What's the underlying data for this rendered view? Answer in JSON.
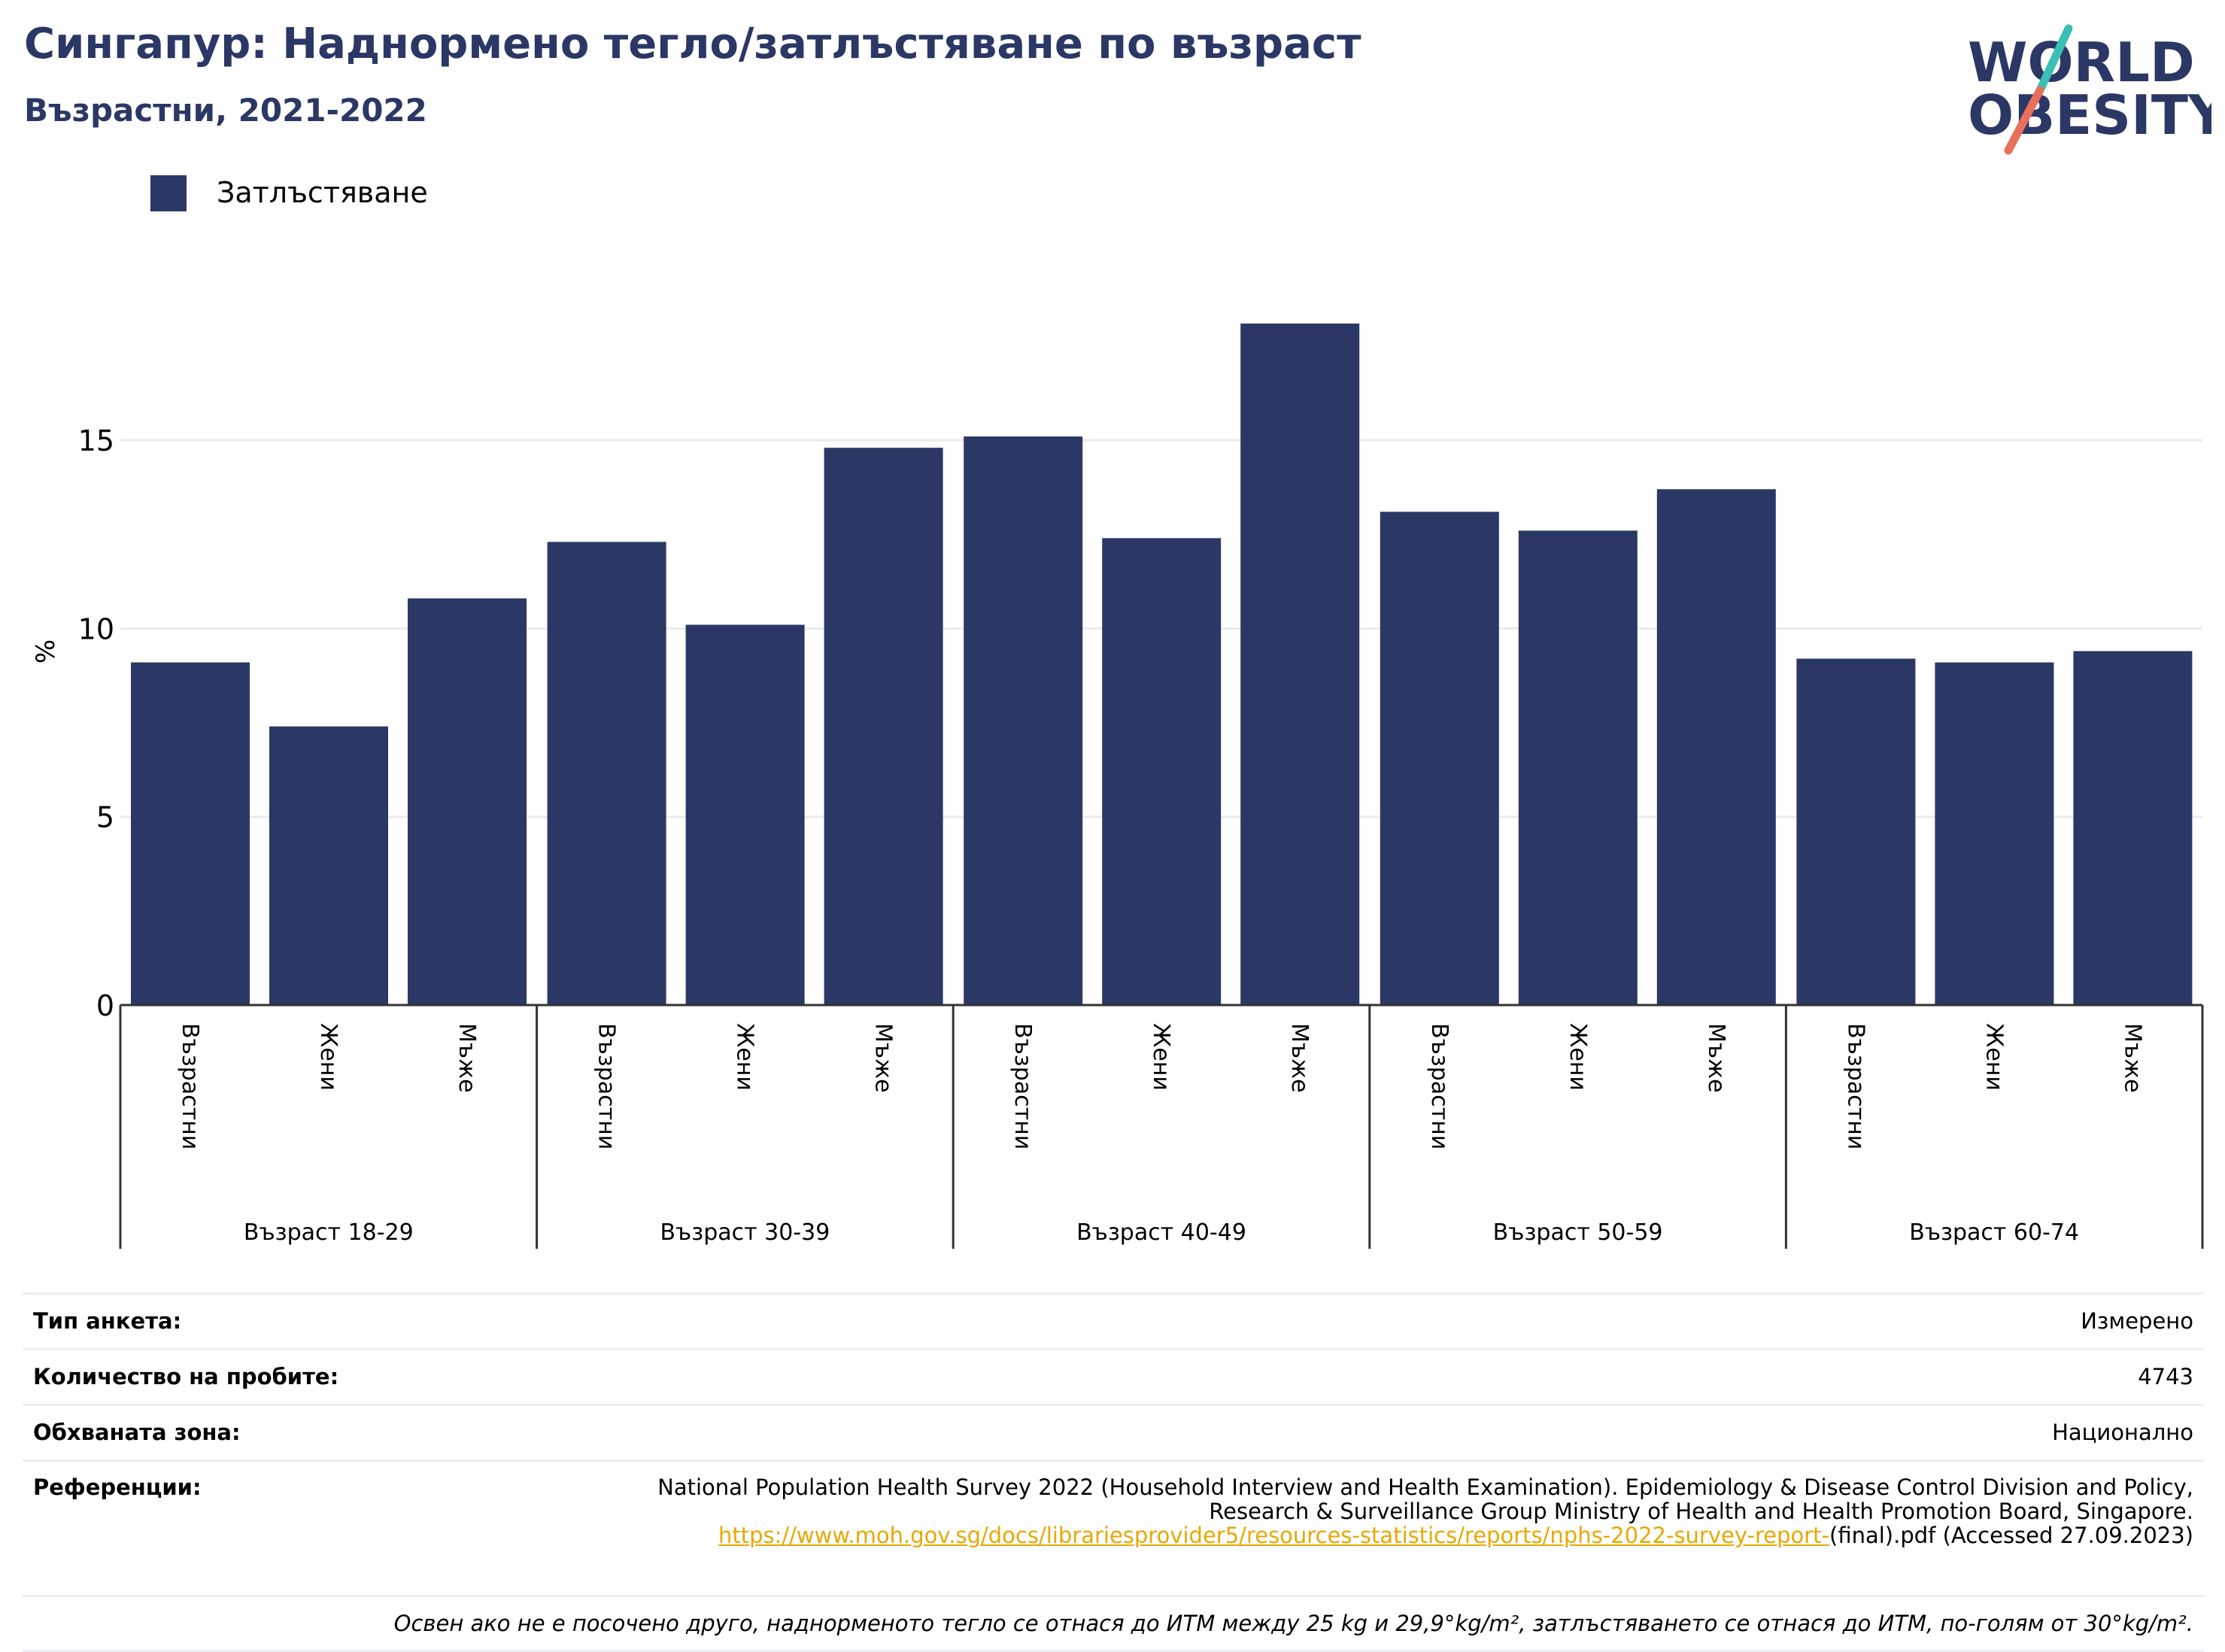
{
  "header": {
    "title": "Сингапур: Наднормено тегло/затлъстяване по възраст",
    "subtitle": "Възрастни, 2021-2022"
  },
  "logo": {
    "line1": "WORLD",
    "line2": "OBESITY",
    "colors": {
      "text": "#2b3765",
      "slash_teal": "#3bbfb5",
      "slash_coral": "#e8705a"
    }
  },
  "legend": {
    "label": "Затлъстяване",
    "color": "#2b3765"
  },
  "chart_data": {
    "type": "bar",
    "title": "Сингапур: Наднормено тегло/затлъстяване по възраст",
    "subtitle": "Възрастни, 2021-2022",
    "ylabel": "%",
    "ylim": [
      0,
      19.5
    ],
    "yticks": [
      0,
      5,
      10,
      15
    ],
    "grid": true,
    "legend_position": "top-left",
    "bar_color": "#2b3765",
    "groups": [
      {
        "label": "Възраст 18-29",
        "categories": [
          "Възрастни",
          "Жени",
          "Мъже"
        ],
        "values": [
          9.1,
          7.4,
          10.8
        ]
      },
      {
        "label": "Възраст 30-39",
        "categories": [
          "Възрастни",
          "Жени",
          "Мъже"
        ],
        "values": [
          12.3,
          10.1,
          14.8
        ]
      },
      {
        "label": "Възраст 40-49",
        "categories": [
          "Възрастни",
          "Жени",
          "Мъже"
        ],
        "values": [
          15.1,
          12.4,
          18.1
        ]
      },
      {
        "label": "Възраст 50-59",
        "categories": [
          "Възрастни",
          "Жени",
          "Мъже"
        ],
        "values": [
          13.1,
          12.6,
          13.7
        ]
      },
      {
        "label": "Възраст 60-74",
        "categories": [
          "Възрастни",
          "Жени",
          "Мъже"
        ],
        "values": [
          9.2,
          9.1,
          9.4
        ]
      }
    ],
    "series": [
      {
        "name": "Затлъстяване",
        "values": [
          9.1,
          7.4,
          10.8,
          12.3,
          10.1,
          14.8,
          15.1,
          12.4,
          18.1,
          13.1,
          12.6,
          13.7,
          9.2,
          9.1,
          9.4
        ]
      }
    ]
  },
  "info": {
    "survey_type_label": "Тип анкета:",
    "survey_type_value": "Измерено",
    "sample_size_label": "Количество на пробите:",
    "sample_size_value": "4743",
    "coverage_label": "Обхваната зона:",
    "coverage_value": "Национално",
    "references_label": "Референции:",
    "references_line1": "National Population Health Survey 2022 (Household Interview and Health Examination). Epidemiology & Disease Control Division and Policy,",
    "references_line2": "Research & Surveillance Group Ministry of Health and Health Promotion Board, Singapore.",
    "references_link": "https://www.moh.gov.sg/docs/librariesprovider5/resources-statistics/reports/nphs-2022-survey-report-",
    "references_tail": "(final).pdf (Accessed 27.09.2023)",
    "note": "Освен ако не е посочено друго, наднорменото тегло се отнася до ИТМ между 25 kg и 29,9°kg/m², затлъстяването се отнася до ИТМ, по-голям от 30°kg/m²."
  }
}
